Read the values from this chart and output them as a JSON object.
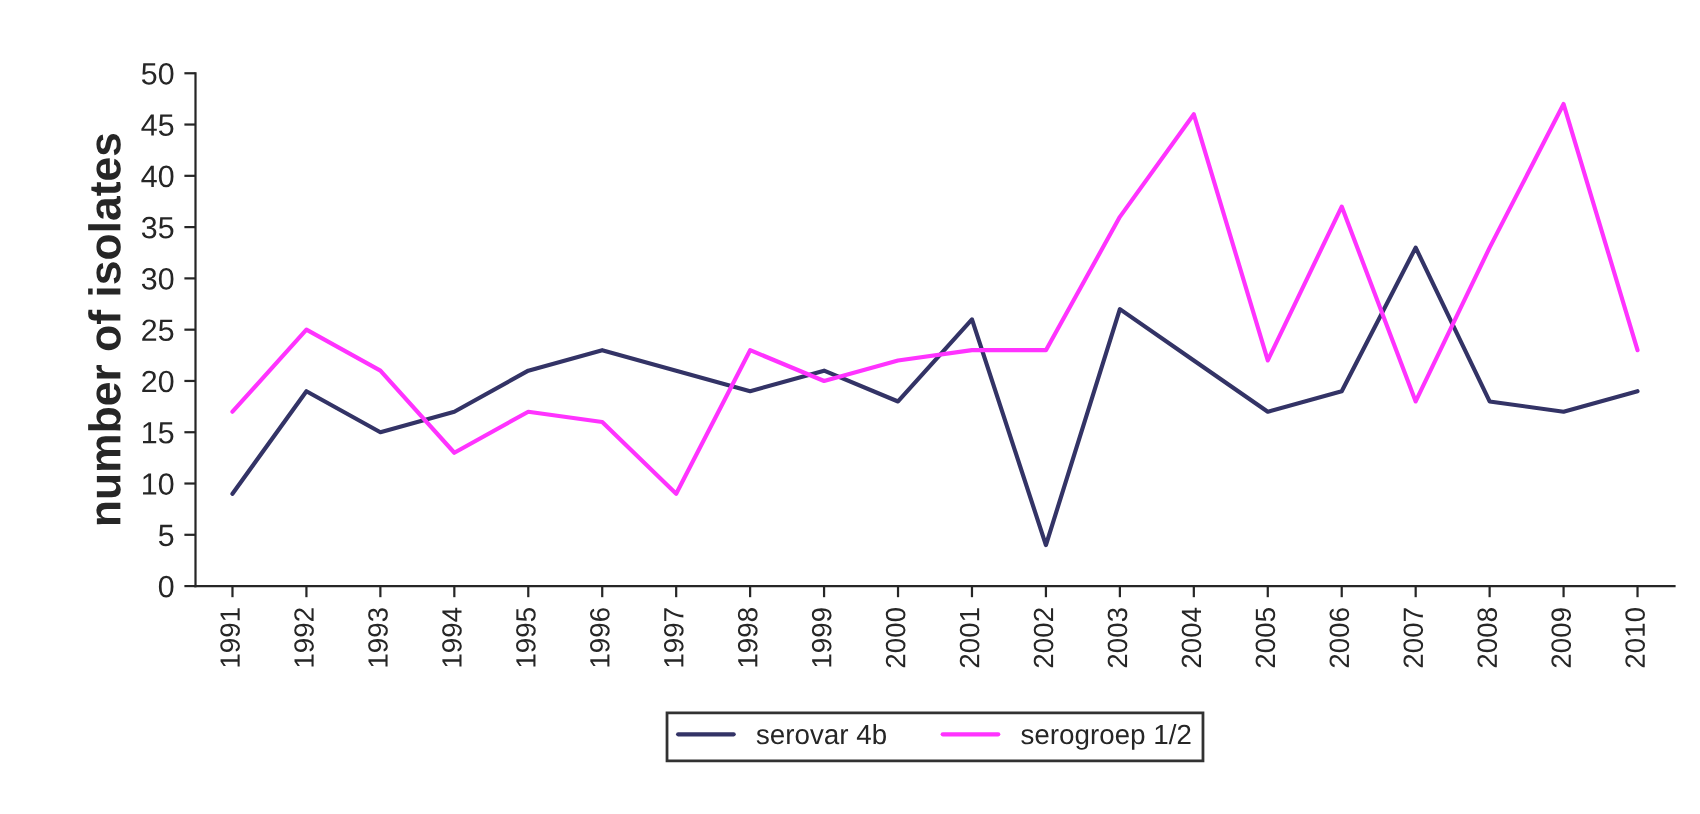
{
  "chart_data": {
    "type": "line",
    "ylabel": "number of isolates",
    "categories": [
      "1991",
      "1992",
      "1993",
      "1994",
      "1995",
      "1996",
      "1997",
      "1998",
      "1999",
      "2000",
      "2001",
      "2002",
      "2003",
      "2004",
      "2005",
      "2006",
      "2007",
      "2008",
      "2009",
      "2010"
    ],
    "series": [
      {
        "name": "serovar 4b",
        "color": "#333366",
        "values": [
          9,
          19,
          15,
          17,
          21,
          23,
          21,
          19,
          21,
          18,
          26,
          4,
          27,
          22,
          17,
          19,
          33,
          18,
          17,
          19
        ]
      },
      {
        "name": "serogroep 1/2",
        "color": "#ff33ff",
        "values": [
          17,
          25,
          21,
          13,
          17,
          16,
          9,
          23,
          20,
          22,
          23,
          23,
          36,
          46,
          22,
          37,
          18,
          33,
          47,
          23
        ]
      }
    ],
    "ylim": [
      0,
      50
    ],
    "yticks": [
      0,
      5,
      10,
      15,
      20,
      25,
      30,
      35,
      40,
      45,
      50
    ],
    "grid": false,
    "legend": "bottom",
    "marker": "none",
    "line_style": "solid"
  }
}
